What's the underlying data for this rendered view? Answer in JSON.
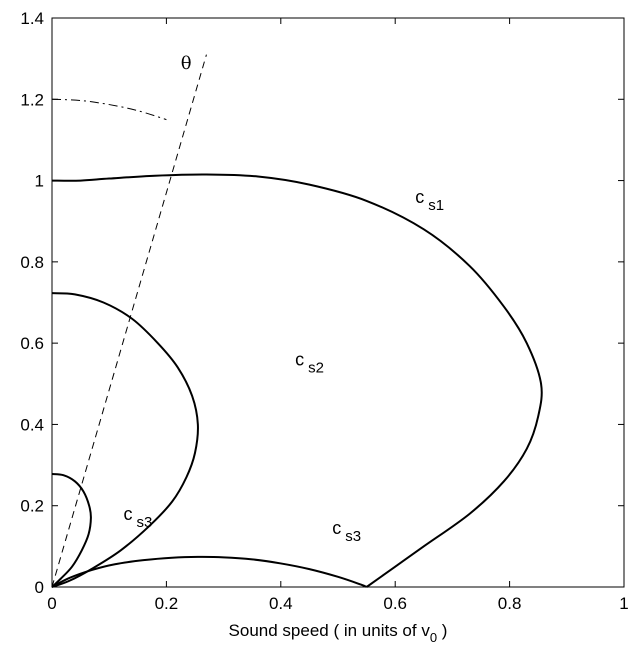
{
  "chart_data": {
    "type": "line",
    "title": "",
    "xlabel": "Sound speed  ( in units of v",
    "xlabel_sub": "0",
    "xlabel_close": " )",
    "ylabel": "",
    "xlim": [
      0,
      1
    ],
    "ylim": [
      0,
      1.4
    ],
    "xticks": [
      0,
      0.2,
      0.4,
      0.6,
      0.8,
      1
    ],
    "xtick_labels": [
      "0",
      "0.2",
      "0.4",
      "0.6",
      "0.8",
      "1"
    ],
    "yticks": [
      0,
      0.2,
      0.4,
      0.6,
      0.8,
      1,
      1.2,
      1.4
    ],
    "ytick_labels": [
      "0",
      "0.2",
      "0.4",
      "0.6",
      "0.8",
      "1",
      "1.2",
      "1.4"
    ],
    "grid": false,
    "series": [
      {
        "points": [
          [
            0,
            1.0
          ],
          [
            0.05,
            1.0
          ],
          [
            0.1,
            1.005
          ],
          [
            0.18,
            1.012
          ],
          [
            0.27,
            1.015
          ],
          [
            0.36,
            1.01
          ],
          [
            0.45,
            0.99
          ],
          [
            0.55,
            0.95
          ],
          [
            0.65,
            0.88
          ],
          [
            0.73,
            0.79
          ],
          [
            0.79,
            0.69
          ],
          [
            0.83,
            0.6
          ],
          [
            0.855,
            0.5
          ],
          [
            0.85,
            0.42
          ],
          [
            0.83,
            0.34
          ],
          [
            0.79,
            0.26
          ],
          [
            0.73,
            0.18
          ],
          [
            0.65,
            0.1
          ],
          [
            0.6,
            0.05
          ],
          [
            0.55,
            0.0
          ]
        ]
      },
      {
        "points": [
          [
            0,
            0.723
          ],
          [
            0.04,
            0.72
          ],
          [
            0.09,
            0.7
          ],
          [
            0.14,
            0.66
          ],
          [
            0.185,
            0.6
          ],
          [
            0.22,
            0.54
          ],
          [
            0.245,
            0.47
          ],
          [
            0.255,
            0.4
          ],
          [
            0.25,
            0.33
          ],
          [
            0.235,
            0.27
          ],
          [
            0.21,
            0.21
          ],
          [
            0.17,
            0.15
          ],
          [
            0.12,
            0.09
          ],
          [
            0.07,
            0.045
          ],
          [
            0.03,
            0.015
          ],
          [
            0,
            0
          ]
        ]
      },
      {
        "points": [
          [
            0,
            0.278
          ],
          [
            0.02,
            0.275
          ],
          [
            0.04,
            0.26
          ],
          [
            0.055,
            0.235
          ],
          [
            0.065,
            0.2
          ],
          [
            0.068,
            0.17
          ],
          [
            0.064,
            0.13
          ],
          [
            0.052,
            0.09
          ],
          [
            0.035,
            0.05
          ],
          [
            0.015,
            0.02
          ],
          [
            0,
            0
          ]
        ]
      },
      {
        "points": [
          [
            0,
            0
          ],
          [
            0.03,
            0.022
          ],
          [
            0.07,
            0.042
          ],
          [
            0.11,
            0.056
          ],
          [
            0.16,
            0.066
          ],
          [
            0.21,
            0.072
          ],
          [
            0.255,
            0.074
          ],
          [
            0.3,
            0.073
          ],
          [
            0.35,
            0.068
          ],
          [
            0.4,
            0.058
          ],
          [
            0.45,
            0.044
          ],
          [
            0.5,
            0.025
          ],
          [
            0.54,
            0.006
          ],
          [
            0.55,
            0
          ]
        ]
      }
    ],
    "annotations": [
      {
        "text": "c",
        "sub": "s1",
        "x": 0.635,
        "y": 0.945
      },
      {
        "text": "c",
        "sub": "s2",
        "x": 0.425,
        "y": 0.545
      },
      {
        "text": "c",
        "sub": "s3",
        "x": 0.125,
        "y": 0.165
      },
      {
        "text": "c",
        "sub": "s3",
        "x": 0.49,
        "y": 0.13
      },
      {
        "text": "θ",
        "sub": "",
        "x": 0.225,
        "y": 1.275
      }
    ],
    "reference_lines": [
      {
        "style": "dashed",
        "points": [
          [
            0,
            0
          ],
          [
            0.27,
            1.31
          ]
        ]
      },
      {
        "style": "dashdot",
        "points": [
          [
            0,
            1.2
          ],
          [
            0.05,
            1.197
          ],
          [
            0.1,
            1.187
          ],
          [
            0.15,
            1.172
          ],
          [
            0.2,
            1.15
          ]
        ]
      }
    ]
  }
}
